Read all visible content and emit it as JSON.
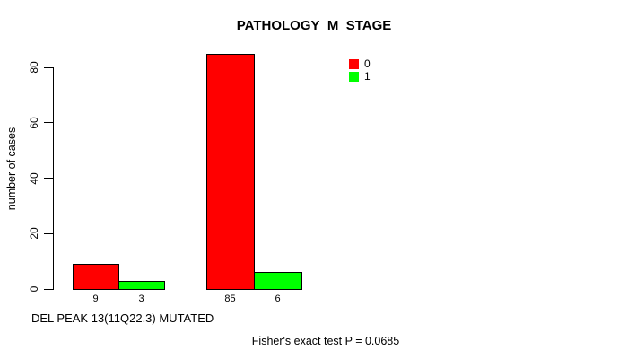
{
  "chart_data": {
    "type": "bar",
    "title": "PATHOLOGY_M_STAGE",
    "ylabel": "number of cases",
    "xlabel": "DEL PEAK 13(11Q22.3) MUTATED",
    "footnote": "Fisher's exact test P = 0.0685",
    "ylim": [
      0,
      80
    ],
    "yticks": [
      0,
      20,
      40,
      60,
      80
    ],
    "grid": false,
    "legend_position": "top-right-inside",
    "legend_entries": [
      {
        "label": "0",
        "color": "#FF0000"
      },
      {
        "label": "1",
        "color": "#00FF00"
      }
    ],
    "series": [
      {
        "name": "0",
        "color": "#FF0000",
        "values": [
          9,
          85
        ]
      },
      {
        "name": "1",
        "color": "#00FF00",
        "values": [
          3,
          6
        ]
      }
    ],
    "bar_value_labels": [
      [
        "9",
        "3"
      ],
      [
        "85",
        "6"
      ]
    ],
    "colors": {
      "background": "#FFFFFF",
      "axis": "#000000",
      "text": "#000000"
    }
  }
}
